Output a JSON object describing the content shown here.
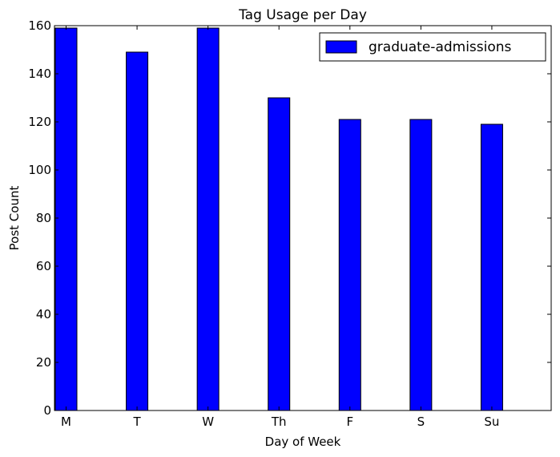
{
  "chart_data": {
    "type": "bar",
    "title": "Tag Usage per Day",
    "xlabel": "Day of Week",
    "ylabel": "Post Count",
    "categories": [
      "M",
      "T",
      "W",
      "Th",
      "F",
      "S",
      "Su"
    ],
    "series": [
      {
        "name": "graduate-admissions",
        "values": [
          159,
          149,
          159,
          130,
          121,
          121,
          119
        ],
        "color": "#0000ff"
      }
    ],
    "ylim": [
      0,
      160
    ],
    "yticks": [
      0,
      20,
      40,
      60,
      80,
      100,
      120,
      140,
      160
    ],
    "grid": false,
    "legend": "top-right"
  }
}
